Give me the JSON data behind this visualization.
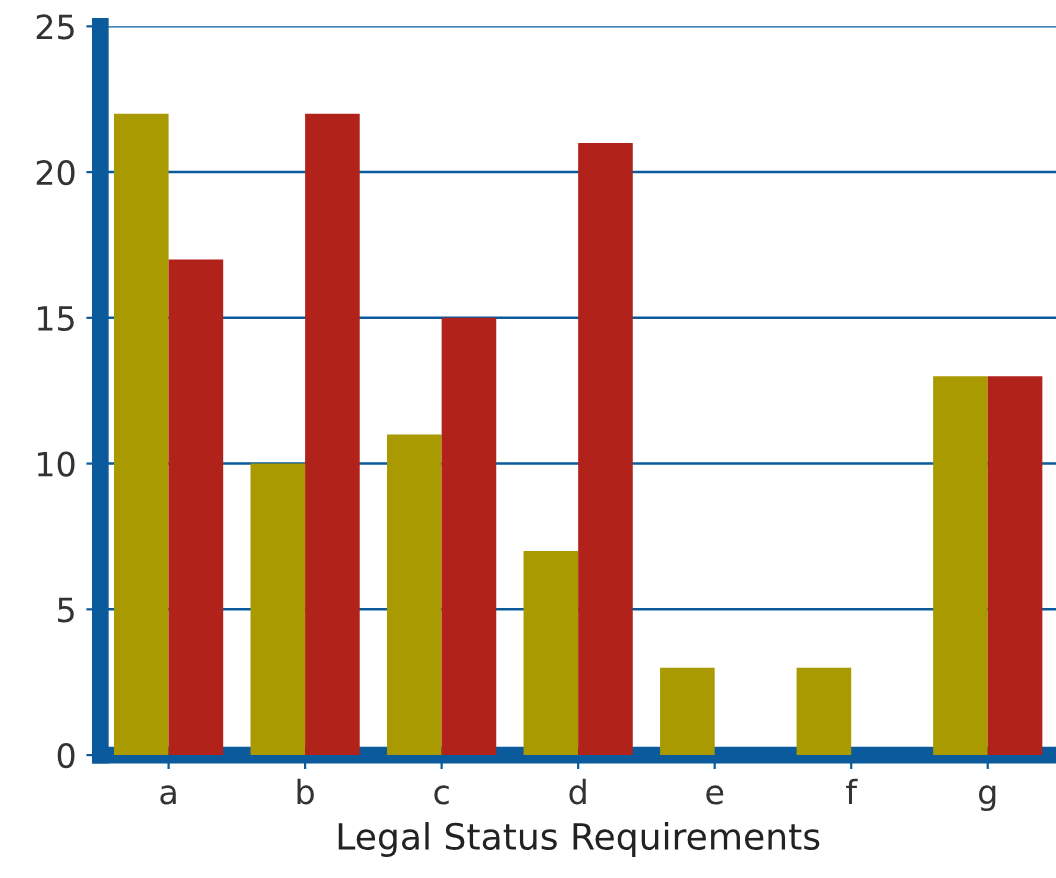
{
  "chart_data": {
    "type": "bar",
    "xlabel": "Legal Status Requirements",
    "categories": [
      "a",
      "b",
      "c",
      "d",
      "e",
      "f",
      "g"
    ],
    "series": [
      {
        "color": "#a89a00",
        "values": [
          22,
          10,
          11,
          7,
          3,
          3,
          13
        ]
      },
      {
        "color": "#b0221a",
        "values": [
          17,
          22,
          15,
          21,
          0,
          0,
          13
        ]
      }
    ],
    "ylim": [
      0,
      25
    ],
    "yticks": [
      0,
      5,
      10,
      15,
      20,
      25
    ],
    "grid": "y"
  }
}
